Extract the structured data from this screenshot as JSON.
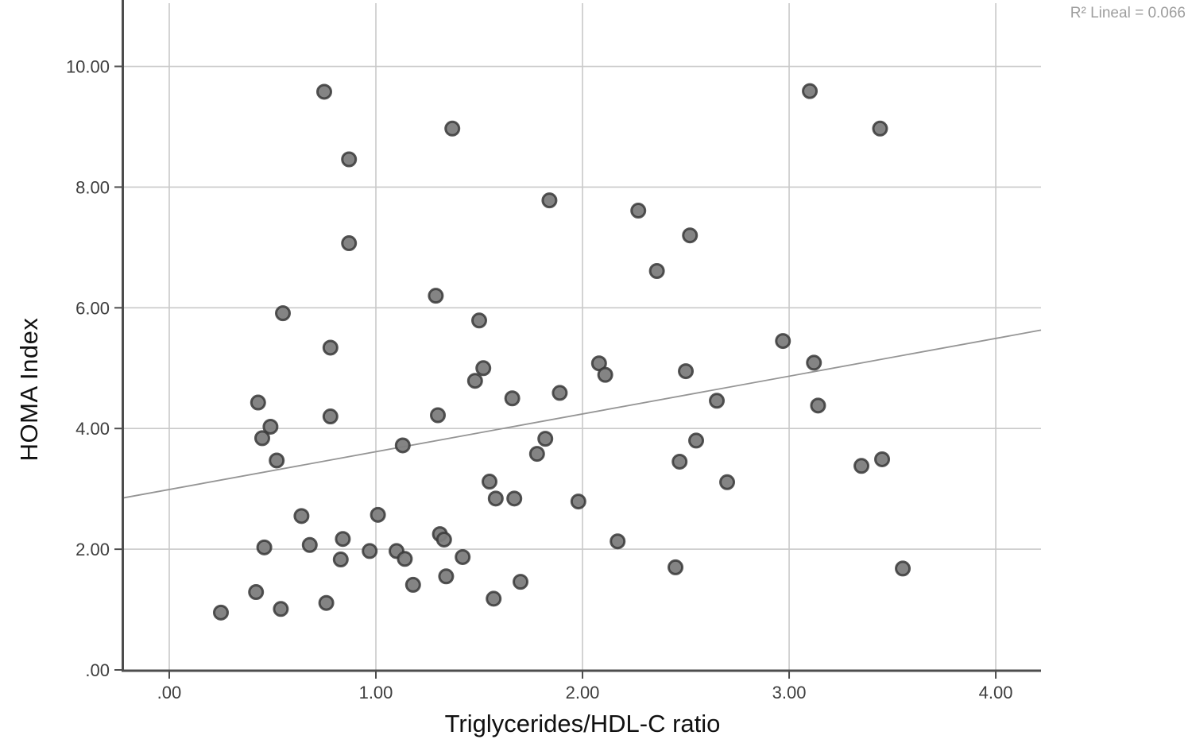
{
  "annotation": {
    "r_squared_label": "R² Lineal = 0.066"
  },
  "colors": {
    "background": "#ffffff",
    "grid": "#c9c9c9",
    "axis": "#4d4d4d",
    "tick_text": "#3d3d3d",
    "title_text": "#101010",
    "annotation_text": "#9e9e9e",
    "trend_line": "#959595",
    "point_fill": "#7d7d7d",
    "point_stroke": "#383838"
  },
  "chart_data": {
    "type": "scatter",
    "title": "",
    "xlabel": "Triglycerides/HDL-C ratio",
    "ylabel": "HOMA Index",
    "xlim": [
      -0.223,
      4.219
    ],
    "ylim": [
      0,
      11.1
    ],
    "grid": true,
    "x_ticks": {
      "values": [
        0,
        1,
        2,
        3,
        4
      ],
      "labels": [
        ".00",
        "1.00",
        "2.00",
        "3.00",
        "4.00"
      ]
    },
    "y_ticks": {
      "values": [
        0,
        2,
        4,
        6,
        8,
        10
      ],
      "labels": [
        ".00",
        "2.00",
        "4.00",
        "6.00",
        "8.00",
        "10.00"
      ]
    },
    "points": [
      [
        0.75,
        9.58
      ],
      [
        0.87,
        8.46
      ],
      [
        1.37,
        8.97
      ],
      [
        3.1,
        9.59
      ],
      [
        3.44,
        8.97
      ],
      [
        0.87,
        7.07
      ],
      [
        0.55,
        5.91
      ],
      [
        1.84,
        7.78
      ],
      [
        2.27,
        7.61
      ],
      [
        2.52,
        7.2
      ],
      [
        2.36,
        6.61
      ],
      [
        1.29,
        6.2
      ],
      [
        1.5,
        5.79
      ],
      [
        0.78,
        5.34
      ],
      [
        0.43,
        4.43
      ],
      [
        0.49,
        4.03
      ],
      [
        0.45,
        3.84
      ],
      [
        0.78,
        4.2
      ],
      [
        0.52,
        3.47
      ],
      [
        1.13,
        3.72
      ],
      [
        1.52,
        5.0
      ],
      [
        1.48,
        4.79
      ],
      [
        1.66,
        4.5
      ],
      [
        1.89,
        4.59
      ],
      [
        1.3,
        4.22
      ],
      [
        2.08,
        5.08
      ],
      [
        2.11,
        4.89
      ],
      [
        2.5,
        4.95
      ],
      [
        2.65,
        4.46
      ],
      [
        1.82,
        3.83
      ],
      [
        1.78,
        3.58
      ],
      [
        1.55,
        3.12
      ],
      [
        1.58,
        2.84
      ],
      [
        1.67,
        2.84
      ],
      [
        1.98,
        2.79
      ],
      [
        2.47,
        3.45
      ],
      [
        2.55,
        3.8
      ],
      [
        2.7,
        3.11
      ],
      [
        2.97,
        5.45
      ],
      [
        3.12,
        5.09
      ],
      [
        3.14,
        4.38
      ],
      [
        3.35,
        3.38
      ],
      [
        3.45,
        3.49
      ],
      [
        0.64,
        2.55
      ],
      [
        1.01,
        2.57
      ],
      [
        0.46,
        2.03
      ],
      [
        0.68,
        2.07
      ],
      [
        0.84,
        2.17
      ],
      [
        0.83,
        1.83
      ],
      [
        0.97,
        1.97
      ],
      [
        1.1,
        1.97
      ],
      [
        1.14,
        1.84
      ],
      [
        1.18,
        1.41
      ],
      [
        0.42,
        1.29
      ],
      [
        0.54,
        1.01
      ],
      [
        0.25,
        0.95
      ],
      [
        0.76,
        1.11
      ],
      [
        1.31,
        2.25
      ],
      [
        1.33,
        2.16
      ],
      [
        1.42,
        1.87
      ],
      [
        1.34,
        1.55
      ],
      [
        1.7,
        1.46
      ],
      [
        1.57,
        1.18
      ],
      [
        2.17,
        2.13
      ],
      [
        2.45,
        1.7
      ],
      [
        3.55,
        1.68
      ]
    ],
    "trend_line": {
      "type": "linear",
      "r_squared": 0.066,
      "x_start": -0.223,
      "y_start": 2.85,
      "x_end": 4.219,
      "y_end": 5.63
    },
    "annotations": [
      "R² Lineal = 0.066"
    ],
    "legend": null
  }
}
